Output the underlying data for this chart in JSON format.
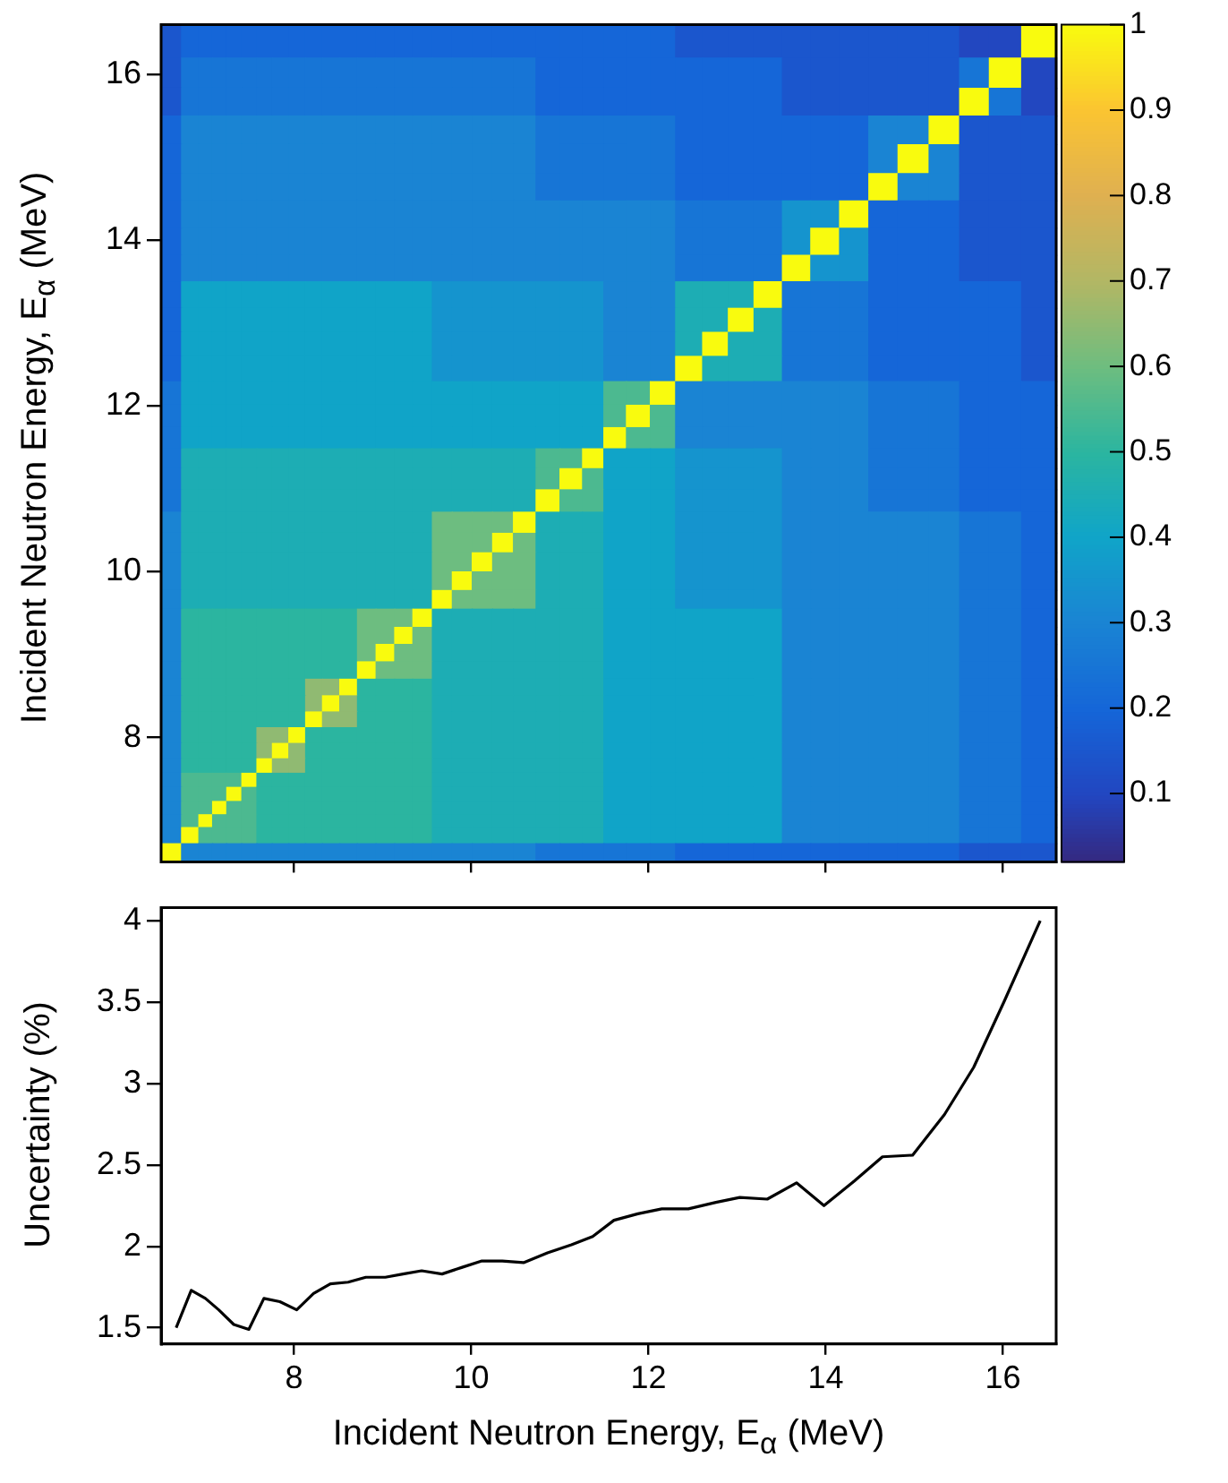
{
  "chart_data": [
    {
      "type": "heatmap",
      "ylabel": "Incident Neutron Energy, E$_{α}$ (MeV)",
      "tick_labels": "y",
      "x": [
        6.61,
        6.84,
        7.0,
        7.15,
        7.32,
        7.49,
        7.66,
        7.84,
        8.03,
        8.22,
        8.41,
        8.61,
        8.81,
        9.03,
        9.23,
        9.44,
        9.67,
        9.89,
        10.12,
        10.35,
        10.59,
        10.86,
        11.13,
        11.37,
        11.61,
        11.88,
        12.15,
        12.45,
        12.76,
        13.03,
        13.34,
        13.67,
        13.98,
        14.32,
        14.64,
        14.98,
        15.34,
        15.67,
        16.01,
        16.4
      ],
      "y": [
        16.4,
        16.01,
        15.67,
        15.34,
        14.98,
        14.64,
        14.32,
        13.98,
        13.67,
        13.34,
        13.03,
        12.76,
        12.45,
        12.15,
        11.88,
        11.61,
        11.37,
        11.13,
        10.86,
        10.59,
        10.35,
        10.12,
        9.89,
        9.67,
        9.44,
        9.23,
        9.03,
        8.81,
        8.61,
        8.41,
        8.22,
        8.03,
        7.84,
        7.66,
        7.49,
        7.32,
        7.15,
        7.0,
        6.84,
        6.61
      ],
      "xlim": [
        6.5,
        16.6
      ],
      "ylim": [
        6.5,
        16.6
      ],
      "xticks": [
        8,
        10,
        12,
        14,
        16
      ],
      "yticks": [
        8,
        10,
        12,
        14,
        16
      ],
      "clim": [
        0.02,
        1
      ],
      "cticks": [
        0.1,
        0.2,
        0.3,
        0.4,
        0.5,
        0.6,
        0.7,
        0.8,
        0.9,
        1
      ],
      "cells": [
        [
          0.15,
          0.2,
          0.2,
          0.2,
          0.2,
          0.2,
          0.2,
          0.2,
          0.2,
          0.2,
          0.2,
          0.2,
          0.2,
          0.2,
          0.2,
          0.2,
          0.2,
          0.2,
          0.2,
          0.2,
          0.2,
          0.2,
          0.2,
          0.2,
          0.2,
          0.2,
          0.2,
          0.15,
          0.15,
          0.15,
          0.15,
          0.15,
          0.15,
          0.15,
          0.15,
          0.15,
          0.15,
          0.1,
          0.1,
          1
        ],
        [
          0.15,
          0.25,
          0.25,
          0.25,
          0.25,
          0.25,
          0.25,
          0.25,
          0.25,
          0.25,
          0.25,
          0.25,
          0.25,
          0.25,
          0.25,
          0.25,
          0.25,
          0.25,
          0.25,
          0.25,
          0.25,
          0.2,
          0.2,
          0.2,
          0.2,
          0.2,
          0.2,
          0.2,
          0.2,
          0.2,
          0.2,
          0.15,
          0.15,
          0.15,
          0.15,
          0.15,
          0.15,
          0.25,
          1,
          0.1
        ],
        [
          0.15,
          0.25,
          0.25,
          0.25,
          0.25,
          0.25,
          0.25,
          0.25,
          0.25,
          0.25,
          0.25,
          0.25,
          0.25,
          0.25,
          0.25,
          0.25,
          0.25,
          0.25,
          0.25,
          0.25,
          0.25,
          0.2,
          0.2,
          0.2,
          0.2,
          0.2,
          0.2,
          0.2,
          0.2,
          0.2,
          0.2,
          0.15,
          0.15,
          0.15,
          0.15,
          0.15,
          0.15,
          1,
          0.25,
          0.1
        ],
        [
          0.2,
          0.3,
          0.3,
          0.3,
          0.3,
          0.3,
          0.3,
          0.3,
          0.3,
          0.3,
          0.3,
          0.3,
          0.3,
          0.3,
          0.3,
          0.3,
          0.3,
          0.3,
          0.3,
          0.3,
          0.3,
          0.25,
          0.25,
          0.25,
          0.25,
          0.25,
          0.25,
          0.2,
          0.2,
          0.2,
          0.2,
          0.2,
          0.2,
          0.2,
          0.3,
          0.3,
          1,
          0.15,
          0.15,
          0.15
        ],
        [
          0.2,
          0.3,
          0.3,
          0.3,
          0.3,
          0.3,
          0.3,
          0.3,
          0.3,
          0.3,
          0.3,
          0.3,
          0.3,
          0.3,
          0.3,
          0.3,
          0.3,
          0.3,
          0.3,
          0.3,
          0.3,
          0.25,
          0.25,
          0.25,
          0.25,
          0.25,
          0.25,
          0.2,
          0.2,
          0.2,
          0.2,
          0.2,
          0.2,
          0.2,
          0.3,
          1,
          0.3,
          0.15,
          0.15,
          0.15
        ],
        [
          0.2,
          0.3,
          0.3,
          0.3,
          0.3,
          0.3,
          0.3,
          0.3,
          0.3,
          0.3,
          0.3,
          0.3,
          0.3,
          0.3,
          0.3,
          0.3,
          0.3,
          0.3,
          0.3,
          0.3,
          0.3,
          0.25,
          0.25,
          0.25,
          0.25,
          0.25,
          0.25,
          0.2,
          0.2,
          0.2,
          0.2,
          0.2,
          0.2,
          0.2,
          1,
          0.3,
          0.3,
          0.15,
          0.15,
          0.15
        ],
        [
          0.2,
          0.3,
          0.3,
          0.3,
          0.3,
          0.3,
          0.3,
          0.3,
          0.3,
          0.3,
          0.3,
          0.3,
          0.3,
          0.3,
          0.3,
          0.3,
          0.3,
          0.3,
          0.3,
          0.3,
          0.3,
          0.3,
          0.3,
          0.3,
          0.3,
          0.3,
          0.3,
          0.25,
          0.25,
          0.25,
          0.25,
          0.35,
          0.35,
          1,
          0.2,
          0.2,
          0.2,
          0.15,
          0.15,
          0.15
        ],
        [
          0.2,
          0.3,
          0.3,
          0.3,
          0.3,
          0.3,
          0.3,
          0.3,
          0.3,
          0.3,
          0.3,
          0.3,
          0.3,
          0.3,
          0.3,
          0.3,
          0.3,
          0.3,
          0.3,
          0.3,
          0.3,
          0.3,
          0.3,
          0.3,
          0.3,
          0.3,
          0.3,
          0.25,
          0.25,
          0.25,
          0.25,
          0.35,
          1,
          0.35,
          0.2,
          0.2,
          0.2,
          0.15,
          0.15,
          0.15
        ],
        [
          0.2,
          0.3,
          0.3,
          0.3,
          0.3,
          0.3,
          0.3,
          0.3,
          0.3,
          0.3,
          0.3,
          0.3,
          0.3,
          0.3,
          0.3,
          0.3,
          0.3,
          0.3,
          0.3,
          0.3,
          0.3,
          0.3,
          0.3,
          0.3,
          0.3,
          0.3,
          0.3,
          0.25,
          0.25,
          0.25,
          0.25,
          1,
          0.35,
          0.35,
          0.2,
          0.2,
          0.2,
          0.15,
          0.15,
          0.15
        ],
        [
          0.2,
          0.4,
          0.4,
          0.4,
          0.4,
          0.4,
          0.4,
          0.4,
          0.4,
          0.4,
          0.4,
          0.4,
          0.4,
          0.4,
          0.4,
          0.4,
          0.35,
          0.35,
          0.35,
          0.35,
          0.35,
          0.35,
          0.35,
          0.35,
          0.3,
          0.3,
          0.3,
          0.45,
          0.45,
          0.45,
          1,
          0.25,
          0.25,
          0.25,
          0.2,
          0.2,
          0.2,
          0.2,
          0.2,
          0.15
        ],
        [
          0.2,
          0.4,
          0.4,
          0.4,
          0.4,
          0.4,
          0.4,
          0.4,
          0.4,
          0.4,
          0.4,
          0.4,
          0.4,
          0.4,
          0.4,
          0.4,
          0.35,
          0.35,
          0.35,
          0.35,
          0.35,
          0.35,
          0.35,
          0.35,
          0.3,
          0.3,
          0.3,
          0.45,
          0.45,
          1,
          0.45,
          0.25,
          0.25,
          0.25,
          0.2,
          0.2,
          0.2,
          0.2,
          0.2,
          0.15
        ],
        [
          0.2,
          0.4,
          0.4,
          0.4,
          0.4,
          0.4,
          0.4,
          0.4,
          0.4,
          0.4,
          0.4,
          0.4,
          0.4,
          0.4,
          0.4,
          0.4,
          0.35,
          0.35,
          0.35,
          0.35,
          0.35,
          0.35,
          0.35,
          0.35,
          0.3,
          0.3,
          0.3,
          0.45,
          1,
          0.45,
          0.45,
          0.25,
          0.25,
          0.25,
          0.2,
          0.2,
          0.2,
          0.2,
          0.2,
          0.15
        ],
        [
          0.2,
          0.4,
          0.4,
          0.4,
          0.4,
          0.4,
          0.4,
          0.4,
          0.4,
          0.4,
          0.4,
          0.4,
          0.4,
          0.4,
          0.4,
          0.4,
          0.35,
          0.35,
          0.35,
          0.35,
          0.35,
          0.35,
          0.35,
          0.35,
          0.3,
          0.3,
          0.3,
          1,
          0.45,
          0.45,
          0.45,
          0.25,
          0.25,
          0.25,
          0.2,
          0.2,
          0.2,
          0.2,
          0.2,
          0.15
        ],
        [
          0.25,
          0.4,
          0.4,
          0.4,
          0.4,
          0.4,
          0.4,
          0.4,
          0.4,
          0.4,
          0.4,
          0.4,
          0.4,
          0.4,
          0.4,
          0.4,
          0.4,
          0.4,
          0.4,
          0.4,
          0.4,
          0.4,
          0.4,
          0.4,
          0.55,
          0.55,
          1,
          0.3,
          0.3,
          0.3,
          0.3,
          0.3,
          0.3,
          0.3,
          0.25,
          0.25,
          0.25,
          0.2,
          0.2,
          0.2
        ],
        [
          0.25,
          0.4,
          0.4,
          0.4,
          0.4,
          0.4,
          0.4,
          0.4,
          0.4,
          0.4,
          0.4,
          0.4,
          0.4,
          0.4,
          0.4,
          0.4,
          0.4,
          0.4,
          0.4,
          0.4,
          0.4,
          0.4,
          0.4,
          0.4,
          0.55,
          1,
          0.55,
          0.3,
          0.3,
          0.3,
          0.3,
          0.3,
          0.3,
          0.3,
          0.25,
          0.25,
          0.25,
          0.2,
          0.2,
          0.2
        ],
        [
          0.25,
          0.4,
          0.4,
          0.4,
          0.4,
          0.4,
          0.4,
          0.4,
          0.4,
          0.4,
          0.4,
          0.4,
          0.4,
          0.4,
          0.4,
          0.4,
          0.4,
          0.4,
          0.4,
          0.4,
          0.4,
          0.4,
          0.4,
          0.4,
          1,
          0.55,
          0.55,
          0.3,
          0.3,
          0.3,
          0.3,
          0.3,
          0.3,
          0.3,
          0.25,
          0.25,
          0.25,
          0.2,
          0.2,
          0.2
        ],
        [
          0.25,
          0.45,
          0.45,
          0.45,
          0.45,
          0.45,
          0.45,
          0.45,
          0.45,
          0.45,
          0.45,
          0.45,
          0.45,
          0.45,
          0.45,
          0.45,
          0.45,
          0.45,
          0.45,
          0.45,
          0.45,
          0.55,
          0.55,
          1,
          0.4,
          0.4,
          0.4,
          0.35,
          0.35,
          0.35,
          0.35,
          0.3,
          0.3,
          0.3,
          0.25,
          0.25,
          0.25,
          0.2,
          0.2,
          0.2
        ],
        [
          0.25,
          0.45,
          0.45,
          0.45,
          0.45,
          0.45,
          0.45,
          0.45,
          0.45,
          0.45,
          0.45,
          0.45,
          0.45,
          0.45,
          0.45,
          0.45,
          0.45,
          0.45,
          0.45,
          0.45,
          0.45,
          0.55,
          1,
          0.55,
          0.4,
          0.4,
          0.4,
          0.35,
          0.35,
          0.35,
          0.35,
          0.3,
          0.3,
          0.3,
          0.25,
          0.25,
          0.25,
          0.2,
          0.2,
          0.2
        ],
        [
          0.25,
          0.45,
          0.45,
          0.45,
          0.45,
          0.45,
          0.45,
          0.45,
          0.45,
          0.45,
          0.45,
          0.45,
          0.45,
          0.45,
          0.45,
          0.45,
          0.45,
          0.45,
          0.45,
          0.45,
          0.45,
          1,
          0.55,
          0.55,
          0.4,
          0.4,
          0.4,
          0.35,
          0.35,
          0.35,
          0.35,
          0.3,
          0.3,
          0.3,
          0.25,
          0.25,
          0.25,
          0.2,
          0.2,
          0.2
        ],
        [
          0.3,
          0.45,
          0.45,
          0.45,
          0.45,
          0.45,
          0.45,
          0.45,
          0.45,
          0.45,
          0.45,
          0.45,
          0.45,
          0.45,
          0.45,
          0.45,
          0.6,
          0.6,
          0.6,
          0.6,
          1,
          0.45,
          0.45,
          0.45,
          0.4,
          0.4,
          0.4,
          0.35,
          0.35,
          0.35,
          0.35,
          0.3,
          0.3,
          0.3,
          0.3,
          0.3,
          0.3,
          0.25,
          0.25,
          0.2
        ],
        [
          0.3,
          0.45,
          0.45,
          0.45,
          0.45,
          0.45,
          0.45,
          0.45,
          0.45,
          0.45,
          0.45,
          0.45,
          0.45,
          0.45,
          0.45,
          0.45,
          0.6,
          0.6,
          0.6,
          1,
          0.6,
          0.45,
          0.45,
          0.45,
          0.4,
          0.4,
          0.4,
          0.35,
          0.35,
          0.35,
          0.35,
          0.3,
          0.3,
          0.3,
          0.3,
          0.3,
          0.3,
          0.25,
          0.25,
          0.2
        ],
        [
          0.3,
          0.45,
          0.45,
          0.45,
          0.45,
          0.45,
          0.45,
          0.45,
          0.45,
          0.45,
          0.45,
          0.45,
          0.45,
          0.45,
          0.45,
          0.45,
          0.6,
          0.6,
          1,
          0.6,
          0.6,
          0.45,
          0.45,
          0.45,
          0.4,
          0.4,
          0.4,
          0.35,
          0.35,
          0.35,
          0.35,
          0.3,
          0.3,
          0.3,
          0.3,
          0.3,
          0.3,
          0.25,
          0.25,
          0.2
        ],
        [
          0.3,
          0.45,
          0.45,
          0.45,
          0.45,
          0.45,
          0.45,
          0.45,
          0.45,
          0.45,
          0.45,
          0.45,
          0.45,
          0.45,
          0.45,
          0.45,
          0.6,
          1,
          0.6,
          0.6,
          0.6,
          0.45,
          0.45,
          0.45,
          0.4,
          0.4,
          0.4,
          0.35,
          0.35,
          0.35,
          0.35,
          0.3,
          0.3,
          0.3,
          0.3,
          0.3,
          0.3,
          0.25,
          0.25,
          0.2
        ],
        [
          0.3,
          0.45,
          0.45,
          0.45,
          0.45,
          0.45,
          0.45,
          0.45,
          0.45,
          0.45,
          0.45,
          0.45,
          0.45,
          0.45,
          0.45,
          0.45,
          1,
          0.6,
          0.6,
          0.6,
          0.6,
          0.45,
          0.45,
          0.45,
          0.4,
          0.4,
          0.4,
          0.35,
          0.35,
          0.35,
          0.35,
          0.3,
          0.3,
          0.3,
          0.3,
          0.3,
          0.3,
          0.25,
          0.25,
          0.2
        ],
        [
          0.3,
          0.5,
          0.5,
          0.5,
          0.5,
          0.5,
          0.5,
          0.5,
          0.5,
          0.5,
          0.5,
          0.5,
          0.6,
          0.6,
          0.6,
          1,
          0.45,
          0.45,
          0.45,
          0.45,
          0.45,
          0.45,
          0.45,
          0.45,
          0.4,
          0.4,
          0.4,
          0.4,
          0.4,
          0.4,
          0.4,
          0.3,
          0.3,
          0.3,
          0.3,
          0.3,
          0.3,
          0.25,
          0.25,
          0.2
        ],
        [
          0.3,
          0.5,
          0.5,
          0.5,
          0.5,
          0.5,
          0.5,
          0.5,
          0.5,
          0.5,
          0.5,
          0.5,
          0.6,
          0.6,
          1,
          0.6,
          0.45,
          0.45,
          0.45,
          0.45,
          0.45,
          0.45,
          0.45,
          0.45,
          0.4,
          0.4,
          0.4,
          0.4,
          0.4,
          0.4,
          0.4,
          0.3,
          0.3,
          0.3,
          0.3,
          0.3,
          0.3,
          0.25,
          0.25,
          0.2
        ],
        [
          0.3,
          0.5,
          0.5,
          0.5,
          0.5,
          0.5,
          0.5,
          0.5,
          0.5,
          0.5,
          0.5,
          0.5,
          0.6,
          1,
          0.6,
          0.6,
          0.45,
          0.45,
          0.45,
          0.45,
          0.45,
          0.45,
          0.45,
          0.45,
          0.4,
          0.4,
          0.4,
          0.4,
          0.4,
          0.4,
          0.4,
          0.3,
          0.3,
          0.3,
          0.3,
          0.3,
          0.3,
          0.25,
          0.25,
          0.2
        ],
        [
          0.3,
          0.5,
          0.5,
          0.5,
          0.5,
          0.5,
          0.5,
          0.5,
          0.5,
          0.5,
          0.5,
          0.5,
          1,
          0.6,
          0.6,
          0.6,
          0.45,
          0.45,
          0.45,
          0.45,
          0.45,
          0.45,
          0.45,
          0.45,
          0.4,
          0.4,
          0.4,
          0.4,
          0.4,
          0.4,
          0.4,
          0.3,
          0.3,
          0.3,
          0.3,
          0.3,
          0.3,
          0.25,
          0.25,
          0.2
        ],
        [
          0.3,
          0.5,
          0.5,
          0.5,
          0.5,
          0.5,
          0.5,
          0.5,
          0.5,
          0.65,
          0.65,
          1,
          0.5,
          0.5,
          0.5,
          0.5,
          0.45,
          0.45,
          0.45,
          0.45,
          0.45,
          0.45,
          0.45,
          0.45,
          0.4,
          0.4,
          0.4,
          0.4,
          0.4,
          0.4,
          0.4,
          0.3,
          0.3,
          0.3,
          0.3,
          0.3,
          0.3,
          0.25,
          0.25,
          0.2
        ],
        [
          0.3,
          0.5,
          0.5,
          0.5,
          0.5,
          0.5,
          0.5,
          0.5,
          0.5,
          0.65,
          1,
          0.65,
          0.5,
          0.5,
          0.5,
          0.5,
          0.45,
          0.45,
          0.45,
          0.45,
          0.45,
          0.45,
          0.45,
          0.45,
          0.4,
          0.4,
          0.4,
          0.4,
          0.4,
          0.4,
          0.4,
          0.3,
          0.3,
          0.3,
          0.3,
          0.3,
          0.3,
          0.25,
          0.25,
          0.2
        ],
        [
          0.3,
          0.5,
          0.5,
          0.5,
          0.5,
          0.5,
          0.5,
          0.5,
          0.5,
          1,
          0.65,
          0.65,
          0.5,
          0.5,
          0.5,
          0.5,
          0.45,
          0.45,
          0.45,
          0.45,
          0.45,
          0.45,
          0.45,
          0.45,
          0.4,
          0.4,
          0.4,
          0.4,
          0.4,
          0.4,
          0.4,
          0.3,
          0.3,
          0.3,
          0.3,
          0.3,
          0.3,
          0.25,
          0.25,
          0.2
        ],
        [
          0.3,
          0.5,
          0.5,
          0.5,
          0.5,
          0.5,
          0.65,
          0.65,
          1,
          0.5,
          0.5,
          0.5,
          0.5,
          0.5,
          0.5,
          0.5,
          0.45,
          0.45,
          0.45,
          0.45,
          0.45,
          0.45,
          0.45,
          0.45,
          0.4,
          0.4,
          0.4,
          0.4,
          0.4,
          0.4,
          0.4,
          0.3,
          0.3,
          0.3,
          0.3,
          0.3,
          0.3,
          0.25,
          0.25,
          0.2
        ],
        [
          0.3,
          0.5,
          0.5,
          0.5,
          0.5,
          0.5,
          0.65,
          1,
          0.65,
          0.5,
          0.5,
          0.5,
          0.5,
          0.5,
          0.5,
          0.5,
          0.45,
          0.45,
          0.45,
          0.45,
          0.45,
          0.45,
          0.45,
          0.45,
          0.4,
          0.4,
          0.4,
          0.4,
          0.4,
          0.4,
          0.4,
          0.3,
          0.3,
          0.3,
          0.3,
          0.3,
          0.3,
          0.25,
          0.25,
          0.2
        ],
        [
          0.3,
          0.5,
          0.5,
          0.5,
          0.5,
          0.5,
          1,
          0.65,
          0.65,
          0.5,
          0.5,
          0.5,
          0.5,
          0.5,
          0.5,
          0.5,
          0.45,
          0.45,
          0.45,
          0.45,
          0.45,
          0.45,
          0.45,
          0.45,
          0.4,
          0.4,
          0.4,
          0.4,
          0.4,
          0.4,
          0.4,
          0.3,
          0.3,
          0.3,
          0.3,
          0.3,
          0.3,
          0.25,
          0.25,
          0.2
        ],
        [
          0.3,
          0.55,
          0.55,
          0.55,
          0.55,
          1,
          0.5,
          0.5,
          0.5,
          0.5,
          0.5,
          0.5,
          0.5,
          0.5,
          0.5,
          0.5,
          0.45,
          0.45,
          0.45,
          0.45,
          0.45,
          0.45,
          0.45,
          0.45,
          0.4,
          0.4,
          0.4,
          0.4,
          0.4,
          0.4,
          0.4,
          0.3,
          0.3,
          0.3,
          0.3,
          0.3,
          0.3,
          0.25,
          0.25,
          0.2
        ],
        [
          0.3,
          0.55,
          0.55,
          0.55,
          1,
          0.55,
          0.5,
          0.5,
          0.5,
          0.5,
          0.5,
          0.5,
          0.5,
          0.5,
          0.5,
          0.5,
          0.45,
          0.45,
          0.45,
          0.45,
          0.45,
          0.45,
          0.45,
          0.45,
          0.4,
          0.4,
          0.4,
          0.4,
          0.4,
          0.4,
          0.4,
          0.3,
          0.3,
          0.3,
          0.3,
          0.3,
          0.3,
          0.25,
          0.25,
          0.2
        ],
        [
          0.3,
          0.55,
          0.55,
          1,
          0.55,
          0.55,
          0.5,
          0.5,
          0.5,
          0.5,
          0.5,
          0.5,
          0.5,
          0.5,
          0.5,
          0.5,
          0.45,
          0.45,
          0.45,
          0.45,
          0.45,
          0.45,
          0.45,
          0.45,
          0.4,
          0.4,
          0.4,
          0.4,
          0.4,
          0.4,
          0.4,
          0.3,
          0.3,
          0.3,
          0.3,
          0.3,
          0.3,
          0.25,
          0.25,
          0.2
        ],
        [
          0.3,
          0.55,
          1,
          0.55,
          0.55,
          0.55,
          0.5,
          0.5,
          0.5,
          0.5,
          0.5,
          0.5,
          0.5,
          0.5,
          0.5,
          0.5,
          0.45,
          0.45,
          0.45,
          0.45,
          0.45,
          0.45,
          0.45,
          0.45,
          0.4,
          0.4,
          0.4,
          0.4,
          0.4,
          0.4,
          0.4,
          0.3,
          0.3,
          0.3,
          0.3,
          0.3,
          0.3,
          0.25,
          0.25,
          0.2
        ],
        [
          0.3,
          1,
          0.55,
          0.55,
          0.55,
          0.55,
          0.5,
          0.5,
          0.5,
          0.5,
          0.5,
          0.5,
          0.5,
          0.5,
          0.5,
          0.5,
          0.45,
          0.45,
          0.45,
          0.45,
          0.45,
          0.45,
          0.45,
          0.45,
          0.4,
          0.4,
          0.4,
          0.4,
          0.4,
          0.4,
          0.4,
          0.3,
          0.3,
          0.3,
          0.3,
          0.3,
          0.3,
          0.25,
          0.25,
          0.2
        ],
        [
          1,
          0.3,
          0.3,
          0.3,
          0.3,
          0.3,
          0.3,
          0.3,
          0.3,
          0.3,
          0.3,
          0.3,
          0.3,
          0.3,
          0.3,
          0.3,
          0.3,
          0.3,
          0.3,
          0.3,
          0.3,
          0.25,
          0.25,
          0.25,
          0.25,
          0.25,
          0.25,
          0.2,
          0.2,
          0.2,
          0.2,
          0.2,
          0.2,
          0.2,
          0.2,
          0.2,
          0.2,
          0.15,
          0.15,
          0.15
        ]
      ]
    },
    {
      "type": "line",
      "xlabel": "Incident Neutron Energy, E$_{α}$ (MeV)",
      "ylabel": "Uncertainty (%)",
      "color": "#000000",
      "marker": "none",
      "x": [
        6.67,
        6.84,
        7.0,
        7.15,
        7.32,
        7.49,
        7.66,
        7.84,
        8.03,
        8.22,
        8.41,
        8.61,
        8.81,
        9.03,
        9.23,
        9.44,
        9.67,
        9.89,
        10.12,
        10.35,
        10.59,
        10.86,
        11.13,
        11.37,
        11.61,
        11.88,
        12.15,
        12.45,
        12.76,
        13.03,
        13.34,
        13.67,
        13.98,
        14.32,
        14.64,
        14.98,
        15.34,
        15.67,
        16.01,
        16.42
      ],
      "values": [
        1.5,
        1.73,
        1.68,
        1.61,
        1.52,
        1.49,
        1.68,
        1.66,
        1.61,
        1.71,
        1.77,
        1.78,
        1.81,
        1.81,
        1.83,
        1.85,
        1.83,
        1.87,
        1.91,
        1.91,
        1.9,
        1.96,
        2.01,
        2.06,
        2.16,
        2.2,
        2.23,
        2.23,
        2.27,
        2.3,
        2.29,
        2.39,
        2.25,
        2.4,
        2.55,
        2.56,
        2.81,
        3.1,
        3.5,
        4.0
      ],
      "xlim": [
        6.5,
        16.6
      ],
      "ylim": [
        1.4,
        4.08
      ],
      "xticks": [
        8,
        10,
        12,
        14,
        16
      ],
      "yticks": [
        1.5,
        2,
        2.5,
        3,
        3.5,
        4
      ]
    }
  ]
}
